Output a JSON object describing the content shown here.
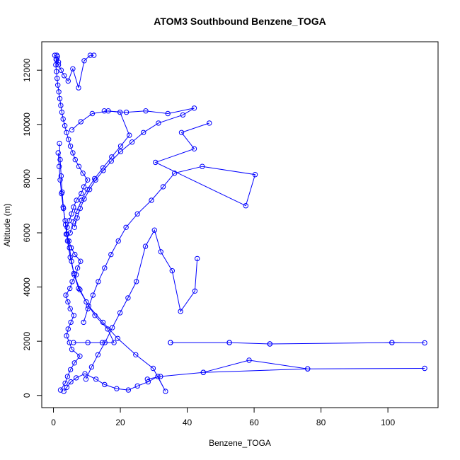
{
  "chart_data": {
    "type": "scatter",
    "title": "ATOM3 Southbound Benzene_TOGA",
    "xlabel": "Benzene_TOGA",
    "ylabel": "Altitude (m)",
    "xlim": [
      -3.5,
      115
    ],
    "ylim": [
      -450,
      13050
    ],
    "x_ticks": [
      0,
      20,
      40,
      60,
      80,
      100
    ],
    "y_ticks": [
      0,
      2000,
      4000,
      6000,
      8000,
      10000,
      12000
    ],
    "x_tick_labels": [
      "0",
      "20",
      "40",
      "60",
      "80",
      "100"
    ],
    "y_tick_labels": [
      "0",
      "2000",
      "4000",
      "6000",
      "8000",
      "10000",
      "12000"
    ],
    "grid": false,
    "legend": "none",
    "line_connected": true,
    "color": "#0000ff",
    "marker": "open-circle",
    "series": [
      {
        "x": [
          2.1,
          3.5,
          4.2,
          5.1,
          6.3,
          7.9,
          5.5,
          4.8,
          3.9,
          4.4,
          5.2,
          6.1,
          5.0,
          4.3,
          3.7,
          4.9,
          5.6,
          6.8,
          7.2,
          8.1,
          6.4,
          5.3,
          4.6,
          3.8,
          4.1,
          4.7,
          5.4,
          6.0,
          6.9,
          8.3,
          9.1,
          10.2,
          8.8,
          7.6,
          6.5,
          5.8,
          5.1,
          4.5,
          3.9,
          3.4,
          2.9,
          2.5,
          2.2,
          1.9,
          1.6,
          1.3,
          1.1,
          0.9,
          0.7,
          0.8,
          1.0,
          1.2,
          1.5
        ],
        "y": [
          200,
          450,
          700,
          950,
          1200,
          1450,
          1700,
          1950,
          2200,
          2450,
          2700,
          2950,
          3200,
          3450,
          3700,
          3950,
          4200,
          4450,
          4700,
          4950,
          5200,
          5450,
          5700,
          5950,
          6200,
          6450,
          6700,
          6950,
          7200,
          7450,
          7700,
          7950,
          8200,
          8450,
          8700,
          8950,
          9200,
          9450,
          9700,
          9950,
          10200,
          10450,
          10700,
          10950,
          11200,
          11450,
          11700,
          11950,
          12200,
          12400,
          12550,
          12500,
          12300
        ]
      },
      {
        "x": [
          3.1,
          4.0,
          5.2,
          6.8,
          9.4,
          12.7,
          15.3,
          18.9,
          22.4,
          25.1,
          28.3,
          31.2,
          33.5,
          29.8,
          24.6,
          19.2,
          14.8,
          10.5,
          7.9,
          6.1,
          5.0,
          4.2,
          3.6,
          3.0,
          2.6,
          2.3,
          2.0,
          1.8
        ],
        "y": [
          150,
          300,
          500,
          650,
          800,
          600,
          400,
          250,
          200,
          350,
          500,
          700,
          150,
          1000,
          1500,
          2100,
          2700,
          3300,
          3900,
          4500,
          5100,
          5700,
          6300,
          6900,
          7500,
          8100,
          8700,
          9300
        ]
      },
      {
        "x": [
          6.0,
          10.3,
          14.6,
          18.1,
          16.2,
          12.4,
          9.8,
          7.5,
          6.2,
          5.4,
          4.8,
          4.1,
          3.5,
          2.9,
          2.4,
          2.0,
          1.7,
          1.4
        ],
        "y": [
          1950,
          1950,
          1950,
          1950,
          2450,
          2950,
          3450,
          3950,
          4450,
          4950,
          5450,
          5950,
          6450,
          6950,
          7450,
          7950,
          8450,
          8950
        ]
      },
      {
        "x": [
          35.0,
          52.6,
          64.7,
          101.2,
          111.0,
          101.2,
          64.7,
          52.6,
          35.0
        ],
        "y": [
          1950,
          1950,
          1900,
          1950,
          1940,
          1950,
          1900,
          1950,
          1950
        ]
      },
      {
        "x": [
          44.8,
          58.5,
          76.0,
          111.0,
          76.0,
          44.8,
          32.0,
          28.1
        ],
        "y": [
          850,
          1300,
          980,
          1000,
          980,
          850,
          700,
          600
        ]
      },
      {
        "x": [
          15.2,
          21.8,
          27.6,
          34.2,
          42.1,
          38.7,
          31.4,
          26.9,
          23.5,
          20.1,
          17.3,
          14.9,
          12.6,
          10.8,
          9.2,
          8.0,
          7.1,
          6.3
        ],
        "y": [
          10500,
          10450,
          10500,
          10400,
          10600,
          10350,
          10050,
          9700,
          9350,
          9000,
          8650,
          8300,
          7950,
          7600,
          7250,
          6900,
          6550,
          6200
        ]
      },
      {
        "x": [
          46.6,
          38.3,
          42.1,
          30.5,
          57.5,
          60.3,
          44.5,
          36.2,
          32.8,
          29.3,
          25.1,
          21.7,
          19.4,
          17.2,
          15.3,
          13.4,
          11.8,
          10.3,
          9.0
        ],
        "y": [
          10050,
          9700,
          9100,
          8600,
          7000,
          8150,
          8450,
          8200,
          7700,
          7200,
          6700,
          6200,
          5700,
          5200,
          4700,
          4200,
          3700,
          3200,
          2700
        ]
      },
      {
        "x": [
          43.0,
          42.3,
          38.0,
          35.5,
          32.1,
          30.2,
          27.5,
          24.8,
          22.3,
          19.9,
          17.6,
          15.4,
          13.3,
          11.4,
          9.7
        ],
        "y": [
          5050,
          3850,
          3100,
          4600,
          5300,
          6100,
          5500,
          4200,
          3600,
          3050,
          2500,
          1950,
          1500,
          1050,
          600
        ]
      },
      {
        "x": [
          5.5,
          8.2,
          11.6,
          16.4,
          19.9,
          22.7,
          20.1,
          17.4,
          14.8,
          12.3,
          10.1,
          8.4,
          7.0,
          5.9,
          5.0
        ],
        "y": [
          9800,
          10100,
          10400,
          10500,
          10450,
          9600,
          9200,
          8800,
          8400,
          8000,
          7600,
          7200,
          6800,
          6400,
          6000
        ]
      },
      {
        "x": [
          0.4,
          0.9,
          1.5,
          2.3,
          3.2,
          4.4,
          5.8,
          7.5,
          9.2,
          11.0,
          12.1
        ],
        "y": [
          12550,
          12400,
          12200,
          12000,
          11800,
          11600,
          12050,
          11350,
          12350,
          12550,
          12550
        ]
      }
    ]
  }
}
